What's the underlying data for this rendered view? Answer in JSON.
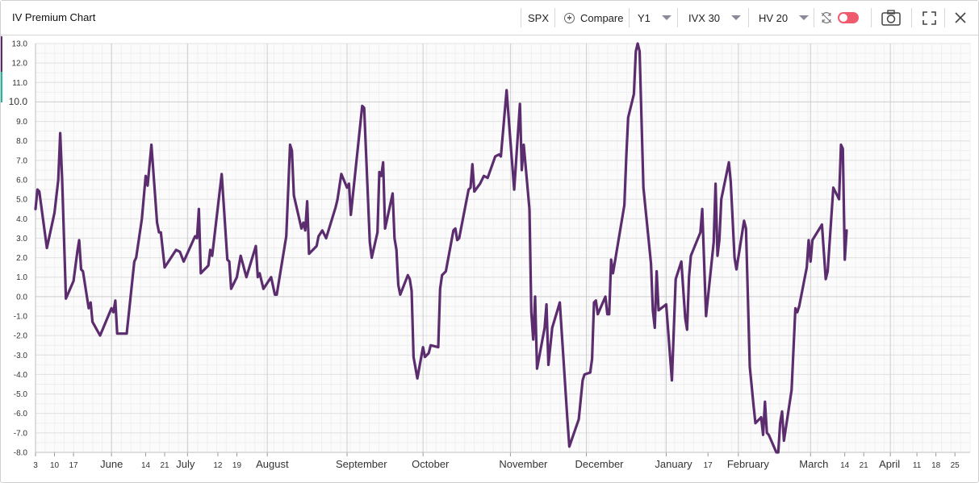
{
  "header": {
    "title": "IV Premium Chart",
    "symbol": "SPX",
    "compare_label": "Compare",
    "period": "Y1",
    "iv_metric": "IVX 30",
    "hv_metric": "HV 20"
  },
  "icons": {
    "compare": "plus-circle-icon",
    "refresh": "sync-icon",
    "camera": "camera-icon",
    "fullscreen": "fullscreen-icon",
    "close": "close-icon"
  },
  "colors": {
    "line": "#5b2d6e",
    "toggle": "#f05a6e",
    "accent_teal": "#1fb89a"
  },
  "chart_data": {
    "type": "line",
    "title": "",
    "xlabel": "",
    "ylabel": "",
    "ylim": [
      -8.0,
      13.0
    ],
    "y_ticks": [
      13.0,
      12.0,
      11.0,
      10.0,
      9.0,
      8.0,
      7.0,
      6.0,
      5.0,
      4.0,
      3.0,
      2.0,
      1.0,
      0.0,
      -1.0,
      -2.0,
      -3.0,
      -4.0,
      -5.0,
      -6.0,
      -7.0,
      -8.0
    ],
    "x_ticks": [
      {
        "label": "3",
        "t": 0,
        "major": false
      },
      {
        "label": "10",
        "t": 5,
        "major": false
      },
      {
        "label": "17",
        "t": 10,
        "major": false
      },
      {
        "label": "June",
        "t": 20,
        "major": true
      },
      {
        "label": "14",
        "t": 29,
        "major": false
      },
      {
        "label": "21",
        "t": 34,
        "major": false
      },
      {
        "label": "July",
        "t": 40,
        "major": true
      },
      {
        "label": "12",
        "t": 48,
        "major": false
      },
      {
        "label": "19",
        "t": 53,
        "major": false
      },
      {
        "label": "August",
        "t": 61,
        "major": true
      },
      {
        "label": "September",
        "t": 82,
        "major": true
      },
      {
        "label": "October",
        "t": 102,
        "major": true
      },
      {
        "label": "November",
        "t": 125,
        "major": true
      },
      {
        "label": "December",
        "t": 145,
        "major": true
      },
      {
        "label": "January",
        "t": 166,
        "major": true
      },
      {
        "label": "17",
        "t": 177,
        "major": false
      },
      {
        "label": "February",
        "t": 185,
        "major": true
      },
      {
        "label": "March",
        "t": 204,
        "major": true
      },
      {
        "label": "14",
        "t": 213,
        "major": false
      },
      {
        "label": "21",
        "t": 218,
        "major": false
      },
      {
        "label": "April",
        "t": 225,
        "major": true
      },
      {
        "label": "11",
        "t": 232,
        "major": false
      },
      {
        "label": "18",
        "t": 237,
        "major": false
      },
      {
        "label": "25",
        "t": 242,
        "major": false
      }
    ],
    "x_range": [
      0,
      246
    ],
    "grid": true,
    "legend": "none",
    "series": [
      {
        "values": [
          [
            0,
            4.5
          ],
          [
            0.5,
            5.5
          ],
          [
            1,
            5.4
          ],
          [
            3,
            2.5
          ],
          [
            5,
            4.3
          ],
          [
            6,
            6.0
          ],
          [
            6.5,
            8.4
          ],
          [
            7,
            6.0
          ],
          [
            8,
            -0.1
          ],
          [
            10,
            0.8
          ],
          [
            11,
            2.3
          ],
          [
            11.5,
            2.9
          ],
          [
            12,
            1.4
          ],
          [
            12.5,
            1.3
          ],
          [
            14,
            -0.6
          ],
          [
            14.5,
            -0.3
          ],
          [
            15,
            -1.3
          ],
          [
            17,
            -2.0
          ],
          [
            20,
            -0.6
          ],
          [
            20.5,
            -0.8
          ],
          [
            21,
            -0.2
          ],
          [
            21.5,
            -1.9
          ],
          [
            24,
            -1.9
          ],
          [
            26,
            1.8
          ],
          [
            26.5,
            2.0
          ],
          [
            28,
            4.0
          ],
          [
            29,
            6.2
          ],
          [
            29.5,
            5.7
          ],
          [
            30.5,
            7.8
          ],
          [
            32,
            3.8
          ],
          [
            32.5,
            3.3
          ],
          [
            33,
            3.3
          ],
          [
            34,
            1.5
          ],
          [
            37,
            2.4
          ],
          [
            38,
            2.3
          ],
          [
            39,
            1.8
          ],
          [
            42,
            3.1
          ],
          [
            42.5,
            3.0
          ],
          [
            43,
            4.5
          ],
          [
            43.5,
            1.2
          ],
          [
            45.5,
            1.6
          ],
          [
            46,
            2.4
          ],
          [
            46.5,
            2.1
          ],
          [
            49,
            6.3
          ],
          [
            50.5,
            1.9
          ],
          [
            51,
            1.8
          ],
          [
            51.5,
            0.4
          ],
          [
            53,
            1.0
          ],
          [
            54,
            2.1
          ],
          [
            55.5,
            1.0
          ],
          [
            58,
            2.6
          ],
          [
            58.5,
            1.0
          ],
          [
            59,
            1.2
          ],
          [
            60,
            0.4
          ],
          [
            62,
            1.0
          ],
          [
            63,
            0.1
          ],
          [
            63.5,
            0.1
          ],
          [
            66,
            3.1
          ],
          [
            67,
            7.8
          ],
          [
            67.5,
            7.5
          ],
          [
            68,
            5.2
          ],
          [
            70,
            3.5
          ],
          [
            70.5,
            3.8
          ],
          [
            71,
            3.4
          ],
          [
            71.5,
            4.9
          ],
          [
            72,
            2.2
          ],
          [
            74,
            2.6
          ],
          [
            74.5,
            3.1
          ],
          [
            75.5,
            3.4
          ],
          [
            76.5,
            3.0
          ],
          [
            79,
            4.6
          ],
          [
            79.5,
            5.0
          ],
          [
            80.5,
            6.3
          ],
          [
            82,
            5.6
          ],
          [
            82.5,
            5.8
          ],
          [
            83,
            4.2
          ],
          [
            86,
            9.8
          ],
          [
            86.5,
            9.7
          ],
          [
            88,
            2.8
          ],
          [
            88.5,
            2.0
          ],
          [
            90,
            3.3
          ],
          [
            90.5,
            6.4
          ],
          [
            91,
            6.2
          ],
          [
            91.5,
            6.9
          ],
          [
            92,
            3.5
          ],
          [
            94,
            5.3
          ],
          [
            94.5,
            3.0
          ],
          [
            95,
            2.4
          ],
          [
            95.5,
            0.6
          ],
          [
            96,
            0.1
          ],
          [
            98,
            1.1
          ],
          [
            98.5,
            0.9
          ],
          [
            99,
            0.3
          ],
          [
            99.5,
            -3.1
          ],
          [
            100.5,
            -4.2
          ],
          [
            102,
            -2.6
          ],
          [
            102.5,
            -3.1
          ],
          [
            103.5,
            -2.9
          ],
          [
            104,
            -2.5
          ],
          [
            106,
            -2.6
          ],
          [
            106.5,
            0.4
          ],
          [
            107,
            1.1
          ],
          [
            108,
            1.3
          ],
          [
            110,
            3.4
          ],
          [
            110.5,
            3.5
          ],
          [
            111,
            2.9
          ],
          [
            111.5,
            3.0
          ],
          [
            114,
            5.5
          ],
          [
            114.5,
            5.6
          ],
          [
            115,
            6.8
          ],
          [
            115.5,
            5.4
          ],
          [
            117,
            5.8
          ],
          [
            118,
            6.2
          ],
          [
            119,
            6.1
          ],
          [
            121,
            7.2
          ],
          [
            122,
            7.3
          ],
          [
            122.5,
            7.2
          ],
          [
            124,
            10.6
          ],
          [
            125,
            8.0
          ],
          [
            126,
            5.5
          ],
          [
            127.5,
            9.9
          ],
          [
            128,
            6.5
          ],
          [
            128.5,
            7.8
          ],
          [
            130,
            4.5
          ],
          [
            130.5,
            -0.8
          ],
          [
            131,
            -2.2
          ],
          [
            131.5,
            0.0
          ],
          [
            132,
            -3.7
          ],
          [
            134,
            -1.6
          ],
          [
            134.5,
            -0.4
          ],
          [
            135,
            -3.5
          ],
          [
            136,
            -1.6
          ],
          [
            138,
            -0.3
          ],
          [
            140,
            -6.3
          ],
          [
            140.5,
            -7.7
          ],
          [
            143,
            -6.3
          ],
          [
            144,
            -4.3
          ],
          [
            144.5,
            -4.0
          ],
          [
            146,
            -3.9
          ],
          [
            146.5,
            -3.2
          ],
          [
            147,
            -0.3
          ],
          [
            147.5,
            -0.2
          ],
          [
            148,
            -0.9
          ],
          [
            150,
            0.0
          ],
          [
            150.5,
            -0.9
          ],
          [
            151,
            -0.9
          ],
          [
            151.5,
            1.9
          ],
          [
            152,
            1.2
          ],
          [
            155,
            4.7
          ],
          [
            155.5,
            7.2
          ],
          [
            156,
            9.2
          ],
          [
            157.5,
            10.4
          ],
          [
            158,
            12.6
          ],
          [
            158.5,
            13.0
          ],
          [
            159,
            12.6
          ],
          [
            160,
            5.6
          ],
          [
            162,
            1.7
          ],
          [
            162.5,
            -0.7
          ],
          [
            163,
            -1.6
          ],
          [
            163.5,
            1.3
          ],
          [
            164,
            -0.7
          ],
          [
            166,
            -0.4
          ],
          [
            167.5,
            -4.3
          ],
          [
            168.5,
            0.9
          ],
          [
            170,
            1.8
          ],
          [
            171,
            -1.1
          ],
          [
            171.5,
            -1.7
          ],
          [
            172,
            1.0
          ],
          [
            172.5,
            2.1
          ],
          [
            175,
            3.3
          ],
          [
            175.5,
            4.5
          ],
          [
            176.5,
            -1.0
          ],
          [
            178.5,
            2.8
          ],
          [
            179,
            5.8
          ],
          [
            179.5,
            2.1
          ],
          [
            180,
            2.9
          ],
          [
            180.5,
            5.0
          ],
          [
            182.5,
            6.9
          ],
          [
            183,
            5.9
          ],
          [
            184,
            2.0
          ],
          [
            184.5,
            1.4
          ],
          [
            186.5,
            3.9
          ],
          [
            187,
            3.5
          ],
          [
            188,
            -3.6
          ],
          [
            189,
            -5.6
          ],
          [
            189.5,
            -6.5
          ],
          [
            191,
            -6.2
          ],
          [
            191.5,
            -7.1
          ],
          [
            192,
            -5.4
          ],
          [
            192.5,
            -7.0
          ],
          [
            193,
            -7.1
          ],
          [
            195,
            -8.0
          ],
          [
            195.5,
            -8.0
          ],
          [
            196,
            -6.5
          ],
          [
            196.5,
            -5.9
          ],
          [
            197,
            -7.4
          ],
          [
            199,
            -4.8
          ],
          [
            200,
            -0.6
          ],
          [
            200.5,
            -0.8
          ],
          [
            201,
            -0.5
          ],
          [
            203,
            1.5
          ],
          [
            203.5,
            2.9
          ],
          [
            204,
            1.8
          ],
          [
            204.5,
            2.9
          ],
          [
            207,
            3.7
          ],
          [
            208,
            0.9
          ],
          [
            208.5,
            1.3
          ],
          [
            210,
            5.6
          ],
          [
            211.5,
            5.0
          ],
          [
            212,
            7.8
          ],
          [
            212.5,
            7.6
          ],
          [
            213,
            1.9
          ],
          [
            213.5,
            3.4
          ]
        ]
      }
    ]
  }
}
